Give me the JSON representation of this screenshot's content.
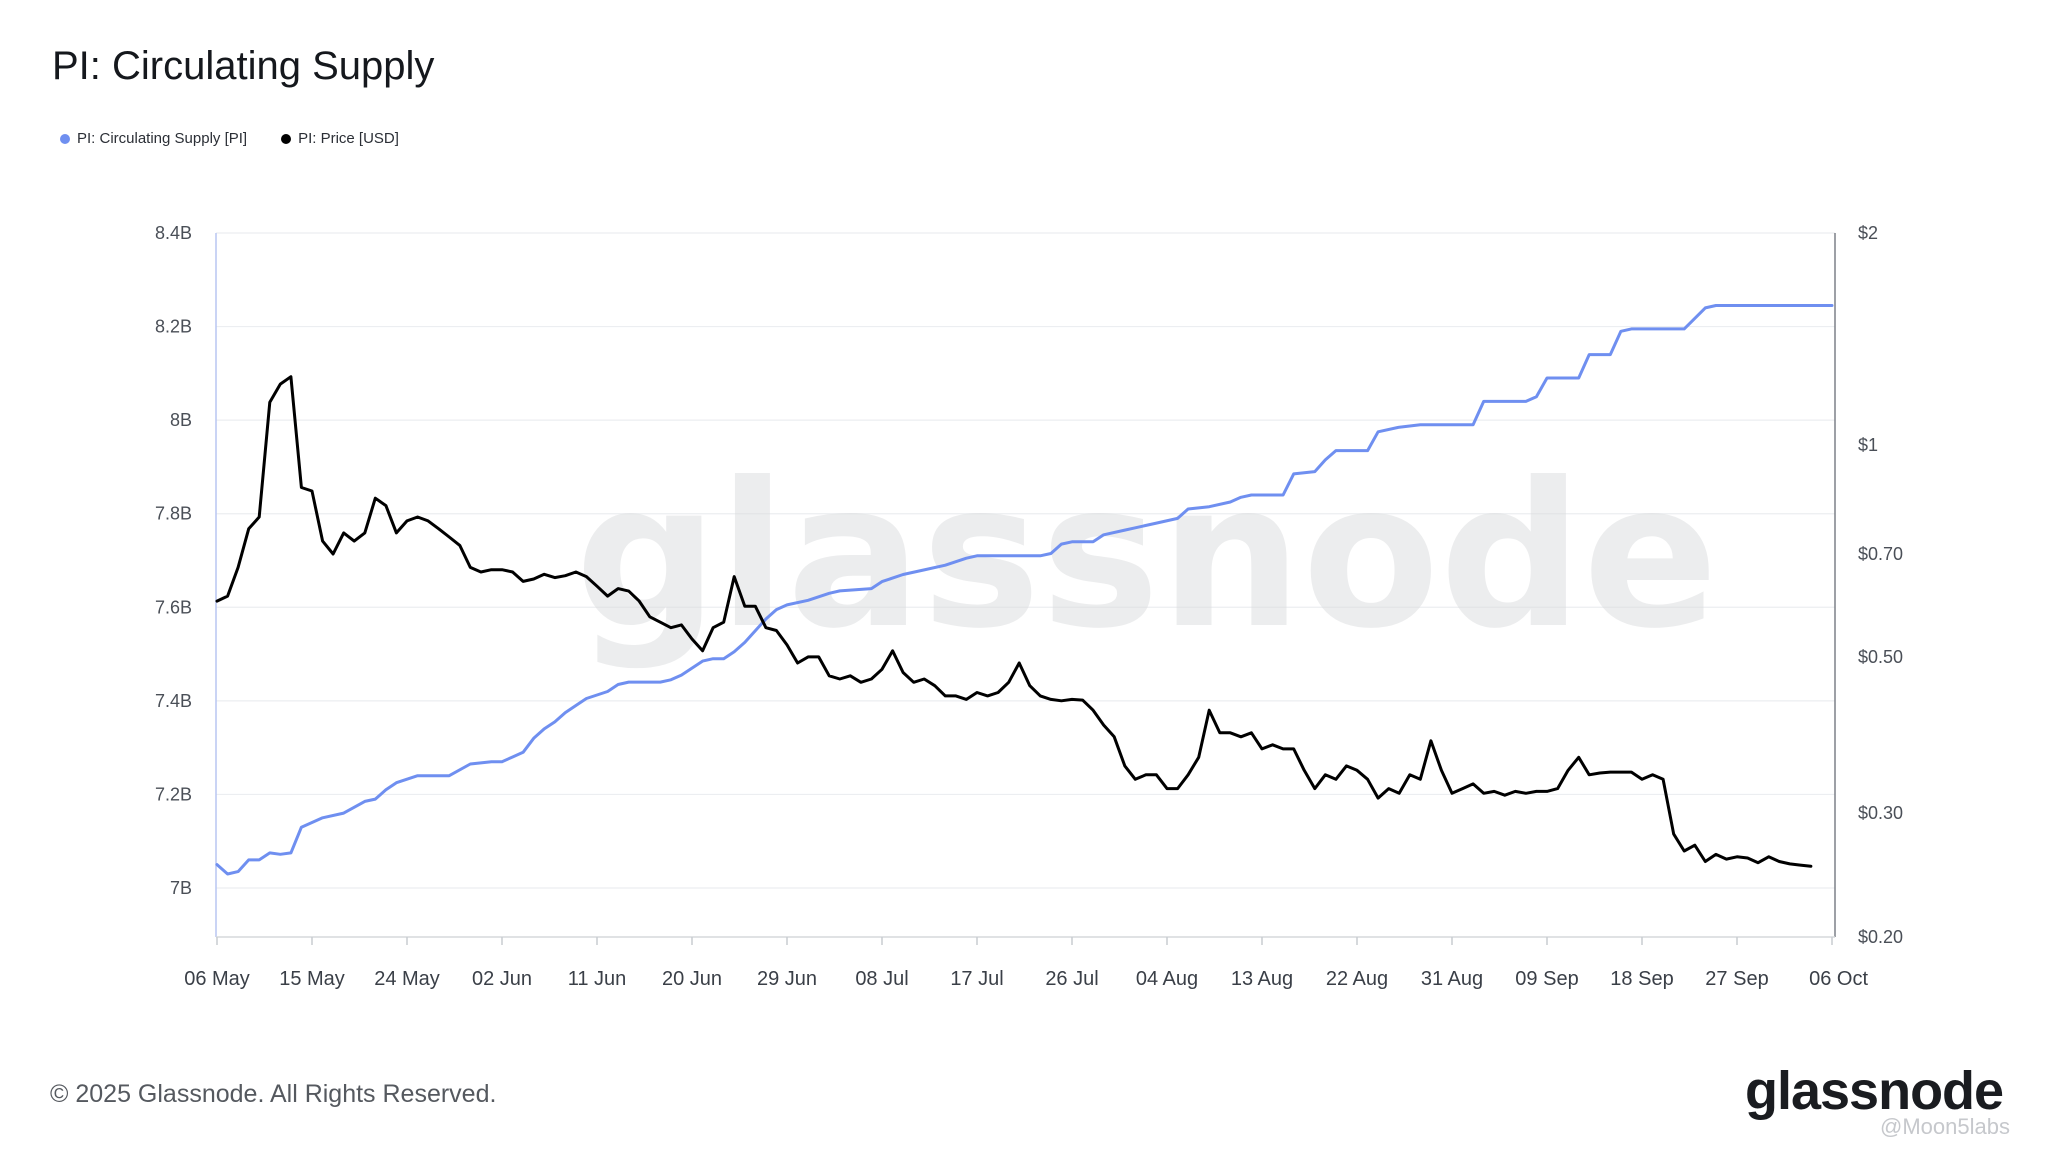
{
  "title": "PI: Circulating Supply",
  "legend": [
    {
      "label": "PI: Circulating Supply [PI]",
      "color": "#6f8ff0"
    },
    {
      "label": "PI: Price [USD]",
      "color": "#000000"
    }
  ],
  "watermark": "glassnode",
  "footer": {
    "copyright": "© 2025 Glassnode. All Rights Reserved.",
    "brand": "glassnode",
    "handle": "@Moon5labs"
  },
  "chart_data": {
    "type": "line",
    "x_start": "2025-05-06",
    "x_tick_labels": [
      "06 May",
      "15 May",
      "24 May",
      "02 Jun",
      "11 Jun",
      "20 Jun",
      "29 Jun",
      "08 Jul",
      "17 Jul",
      "26 Jul",
      "04 Aug",
      "13 Aug",
      "22 Aug",
      "31 Aug",
      "09 Sep",
      "18 Sep",
      "27 Sep",
      "06 Oct"
    ],
    "y_left": {
      "ticks": [
        7.0,
        7.2,
        7.4,
        7.6,
        7.8,
        8.0,
        8.2,
        8.4
      ],
      "tick_labels": [
        "7B",
        "7.2B",
        "7.4B",
        "7.6B",
        "7.8B",
        "8B",
        "8.2B",
        "8.4B"
      ],
      "range": [
        6.9,
        8.4
      ],
      "unit": "billion PI"
    },
    "y_right": {
      "scale": "log",
      "ticks": [
        0.2,
        0.3,
        0.5,
        0.7,
        1,
        2
      ],
      "tick_labels": [
        "$0.20",
        "$0.30",
        "$0.50",
        "$0.70",
        "$1",
        "$2"
      ],
      "range": [
        0.2,
        2
      ]
    },
    "grid": true,
    "legend_position": "top-left",
    "series": [
      {
        "name": "PI: Circulating Supply [PI]",
        "axis": "left",
        "color": "#6f8ff0",
        "points": [
          [
            "2025-05-06",
            7.05
          ],
          [
            "2025-05-07",
            7.03
          ],
          [
            "2025-05-08",
            7.035
          ],
          [
            "2025-05-09",
            7.06
          ],
          [
            "2025-05-10",
            7.06
          ],
          [
            "2025-05-11",
            7.075
          ],
          [
            "2025-05-12",
            7.072
          ],
          [
            "2025-05-13",
            7.075
          ],
          [
            "2025-05-14",
            7.13
          ],
          [
            "2025-05-16",
            7.15
          ],
          [
            "2025-05-18",
            7.16
          ],
          [
            "2025-05-20",
            7.185
          ],
          [
            "2025-05-21",
            7.19
          ],
          [
            "2025-05-22",
            7.21
          ],
          [
            "2025-05-23",
            7.225
          ],
          [
            "2025-05-25",
            7.24
          ],
          [
            "2025-05-28",
            7.24
          ],
          [
            "2025-05-30",
            7.265
          ],
          [
            "2025-06-01",
            7.27
          ],
          [
            "2025-06-02",
            7.27
          ],
          [
            "2025-06-03",
            7.28
          ],
          [
            "2025-06-04",
            7.29
          ],
          [
            "2025-06-05",
            7.32
          ],
          [
            "2025-06-06",
            7.34
          ],
          [
            "2025-06-07",
            7.355
          ],
          [
            "2025-06-08",
            7.375
          ],
          [
            "2025-06-09",
            7.39
          ],
          [
            "2025-06-10",
            7.405
          ],
          [
            "2025-06-12",
            7.42
          ],
          [
            "2025-06-13",
            7.435
          ],
          [
            "2025-06-14",
            7.44
          ],
          [
            "2025-06-17",
            7.44
          ],
          [
            "2025-06-18",
            7.445
          ],
          [
            "2025-06-19",
            7.455
          ],
          [
            "2025-06-20",
            7.47
          ],
          [
            "2025-06-21",
            7.485
          ],
          [
            "2025-06-22",
            7.49
          ],
          [
            "2025-06-23",
            7.49
          ],
          [
            "2025-06-24",
            7.505
          ],
          [
            "2025-06-25",
            7.525
          ],
          [
            "2025-06-26",
            7.55
          ],
          [
            "2025-06-27",
            7.575
          ],
          [
            "2025-06-28",
            7.595
          ],
          [
            "2025-06-29",
            7.605
          ],
          [
            "2025-07-01",
            7.615
          ],
          [
            "2025-07-03",
            7.63
          ],
          [
            "2025-07-04",
            7.635
          ],
          [
            "2025-07-07",
            7.64
          ],
          [
            "2025-07-08",
            7.655
          ],
          [
            "2025-07-10",
            7.67
          ],
          [
            "2025-07-12",
            7.68
          ],
          [
            "2025-07-14",
            7.69
          ],
          [
            "2025-07-16",
            7.705
          ],
          [
            "2025-07-17",
            7.71
          ],
          [
            "2025-07-23",
            7.71
          ],
          [
            "2025-07-24",
            7.715
          ],
          [
            "2025-07-25",
            7.735
          ],
          [
            "2025-07-26",
            7.74
          ],
          [
            "2025-07-28",
            7.74
          ],
          [
            "2025-07-29",
            7.755
          ],
          [
            "2025-07-31",
            7.765
          ],
          [
            "2025-08-01",
            7.77
          ],
          [
            "2025-08-03",
            7.78
          ],
          [
            "2025-08-05",
            7.79
          ],
          [
            "2025-08-06",
            7.81
          ],
          [
            "2025-08-08",
            7.815
          ],
          [
            "2025-08-10",
            7.825
          ],
          [
            "2025-08-11",
            7.835
          ],
          [
            "2025-08-12",
            7.84
          ],
          [
            "2025-08-15",
            7.84
          ],
          [
            "2025-08-16",
            7.885
          ],
          [
            "2025-08-18",
            7.89
          ],
          [
            "2025-08-19",
            7.915
          ],
          [
            "2025-08-20",
            7.935
          ],
          [
            "2025-08-23",
            7.935
          ],
          [
            "2025-08-24",
            7.975
          ],
          [
            "2025-08-26",
            7.985
          ],
          [
            "2025-08-28",
            7.99
          ],
          [
            "2025-09-02",
            7.99
          ],
          [
            "2025-09-03",
            8.04
          ],
          [
            "2025-09-07",
            8.04
          ],
          [
            "2025-09-08",
            8.05
          ],
          [
            "2025-09-09",
            8.09
          ],
          [
            "2025-09-12",
            8.09
          ],
          [
            "2025-09-13",
            8.14
          ],
          [
            "2025-09-15",
            8.14
          ],
          [
            "2025-09-16",
            8.19
          ],
          [
            "2025-09-17",
            8.195
          ],
          [
            "2025-09-22",
            8.195
          ],
          [
            "2025-09-24",
            8.24
          ],
          [
            "2025-09-25",
            8.245
          ],
          [
            "2025-10-06",
            8.245
          ]
        ]
      },
      {
        "name": "PI: Price [USD]",
        "axis": "right",
        "color": "#000000",
        "points": [
          [
            "2025-05-06",
            0.6
          ],
          [
            "2025-05-07",
            0.61
          ],
          [
            "2025-05-08",
            0.67
          ],
          [
            "2025-05-09",
            0.76
          ],
          [
            "2025-05-10",
            0.79
          ],
          [
            "2025-05-11",
            1.15
          ],
          [
            "2025-05-12",
            1.22
          ],
          [
            "2025-05-13",
            1.25
          ],
          [
            "2025-05-14",
            0.87
          ],
          [
            "2025-05-15",
            0.86
          ],
          [
            "2025-05-16",
            0.73
          ],
          [
            "2025-05-17",
            0.7
          ],
          [
            "2025-05-18",
            0.75
          ],
          [
            "2025-05-19",
            0.73
          ],
          [
            "2025-05-20",
            0.75
          ],
          [
            "2025-05-21",
            0.84
          ],
          [
            "2025-05-22",
            0.82
          ],
          [
            "2025-05-23",
            0.75
          ],
          [
            "2025-05-24",
            0.78
          ],
          [
            "2025-05-25",
            0.79
          ],
          [
            "2025-05-26",
            0.78
          ],
          [
            "2025-05-27",
            0.76
          ],
          [
            "2025-05-28",
            0.74
          ],
          [
            "2025-05-29",
            0.72
          ],
          [
            "2025-05-30",
            0.67
          ],
          [
            "2025-05-31",
            0.66
          ],
          [
            "2025-06-01",
            0.665
          ],
          [
            "2025-06-02",
            0.665
          ],
          [
            "2025-06-03",
            0.66
          ],
          [
            "2025-06-04",
            0.64
          ],
          [
            "2025-06-05",
            0.645
          ],
          [
            "2025-06-06",
            0.655
          ],
          [
            "2025-06-07",
            0.648
          ],
          [
            "2025-06-08",
            0.652
          ],
          [
            "2025-06-09",
            0.66
          ],
          [
            "2025-06-10",
            0.65
          ],
          [
            "2025-06-11",
            0.63
          ],
          [
            "2025-06-12",
            0.61
          ],
          [
            "2025-06-13",
            0.625
          ],
          [
            "2025-06-14",
            0.62
          ],
          [
            "2025-06-15",
            0.6
          ],
          [
            "2025-06-16",
            0.57
          ],
          [
            "2025-06-17",
            0.56
          ],
          [
            "2025-06-18",
            0.55
          ],
          [
            "2025-06-19",
            0.555
          ],
          [
            "2025-06-20",
            0.53
          ],
          [
            "2025-06-21",
            0.51
          ],
          [
            "2025-06-22",
            0.55
          ],
          [
            "2025-06-23",
            0.56
          ],
          [
            "2025-06-24",
            0.65
          ],
          [
            "2025-06-25",
            0.59
          ],
          [
            "2025-06-26",
            0.59
          ],
          [
            "2025-06-27",
            0.55
          ],
          [
            "2025-06-28",
            0.545
          ],
          [
            "2025-06-29",
            0.52
          ],
          [
            "2025-06-30",
            0.49
          ],
          [
            "2025-07-01",
            0.5
          ],
          [
            "2025-07-02",
            0.5
          ],
          [
            "2025-07-03",
            0.47
          ],
          [
            "2025-07-04",
            0.465
          ],
          [
            "2025-07-05",
            0.47
          ],
          [
            "2025-07-06",
            0.46
          ],
          [
            "2025-07-07",
            0.465
          ],
          [
            "2025-07-08",
            0.48
          ],
          [
            "2025-07-09",
            0.51
          ],
          [
            "2025-07-10",
            0.475
          ],
          [
            "2025-07-11",
            0.46
          ],
          [
            "2025-07-12",
            0.465
          ],
          [
            "2025-07-13",
            0.455
          ],
          [
            "2025-07-14",
            0.44
          ],
          [
            "2025-07-15",
            0.44
          ],
          [
            "2025-07-16",
            0.435
          ],
          [
            "2025-07-17",
            0.445
          ],
          [
            "2025-07-18",
            0.44
          ],
          [
            "2025-07-19",
            0.445
          ],
          [
            "2025-07-20",
            0.46
          ],
          [
            "2025-07-21",
            0.49
          ],
          [
            "2025-07-22",
            0.455
          ],
          [
            "2025-07-23",
            0.44
          ],
          [
            "2025-07-24",
            0.435
          ],
          [
            "2025-07-25",
            0.433
          ],
          [
            "2025-07-26",
            0.435
          ],
          [
            "2025-07-27",
            0.434
          ],
          [
            "2025-07-28",
            0.42
          ],
          [
            "2025-07-29",
            0.4
          ],
          [
            "2025-07-30",
            0.385
          ],
          [
            "2025-07-31",
            0.35
          ],
          [
            "2025-08-01",
            0.335
          ],
          [
            "2025-08-02",
            0.34
          ],
          [
            "2025-08-03",
            0.34
          ],
          [
            "2025-08-04",
            0.325
          ],
          [
            "2025-08-05",
            0.325
          ],
          [
            "2025-08-06",
            0.34
          ],
          [
            "2025-08-07",
            0.36
          ],
          [
            "2025-08-08",
            0.42
          ],
          [
            "2025-08-09",
            0.39
          ],
          [
            "2025-08-10",
            0.39
          ],
          [
            "2025-08-11",
            0.385
          ],
          [
            "2025-08-12",
            0.39
          ],
          [
            "2025-08-13",
            0.37
          ],
          [
            "2025-08-14",
            0.375
          ],
          [
            "2025-08-15",
            0.37
          ],
          [
            "2025-08-16",
            0.37
          ],
          [
            "2025-08-17",
            0.345
          ],
          [
            "2025-08-18",
            0.325
          ],
          [
            "2025-08-19",
            0.34
          ],
          [
            "2025-08-20",
            0.335
          ],
          [
            "2025-08-21",
            0.35
          ],
          [
            "2025-08-22",
            0.345
          ],
          [
            "2025-08-23",
            0.335
          ],
          [
            "2025-08-24",
            0.315
          ],
          [
            "2025-08-25",
            0.325
          ],
          [
            "2025-08-26",
            0.32
          ],
          [
            "2025-08-27",
            0.34
          ],
          [
            "2025-08-28",
            0.335
          ],
          [
            "2025-08-29",
            0.38
          ],
          [
            "2025-08-30",
            0.345
          ],
          [
            "2025-08-31",
            0.32
          ],
          [
            "2025-09-01",
            0.325
          ],
          [
            "2025-09-02",
            0.33
          ],
          [
            "2025-09-03",
            0.32
          ],
          [
            "2025-09-04",
            0.322
          ],
          [
            "2025-09-05",
            0.318
          ],
          [
            "2025-09-06",
            0.322
          ],
          [
            "2025-09-07",
            0.32
          ],
          [
            "2025-09-08",
            0.322
          ],
          [
            "2025-09-09",
            0.322
          ],
          [
            "2025-09-10",
            0.325
          ],
          [
            "2025-09-11",
            0.345
          ],
          [
            "2025-09-12",
            0.36
          ],
          [
            "2025-09-13",
            0.34
          ],
          [
            "2025-09-14",
            0.342
          ],
          [
            "2025-09-15",
            0.343
          ],
          [
            "2025-09-16",
            0.343
          ],
          [
            "2025-09-17",
            0.343
          ],
          [
            "2025-09-18",
            0.335
          ],
          [
            "2025-09-19",
            0.34
          ],
          [
            "2025-09-20",
            0.335
          ],
          [
            "2025-09-21",
            0.28
          ],
          [
            "2025-09-22",
            0.265
          ],
          [
            "2025-09-23",
            0.27
          ],
          [
            "2025-09-24",
            0.256
          ],
          [
            "2025-09-25",
            0.262
          ],
          [
            "2025-09-26",
            0.258
          ],
          [
            "2025-09-27",
            0.26
          ],
          [
            "2025-09-28",
            0.259
          ],
          [
            "2025-09-29",
            0.255
          ],
          [
            "2025-09-30",
            0.26
          ],
          [
            "2025-10-01",
            0.256
          ],
          [
            "2025-10-02",
            0.254
          ],
          [
            "2025-10-03",
            0.253
          ],
          [
            "2025-10-04",
            0.252
          ]
        ]
      }
    ]
  }
}
